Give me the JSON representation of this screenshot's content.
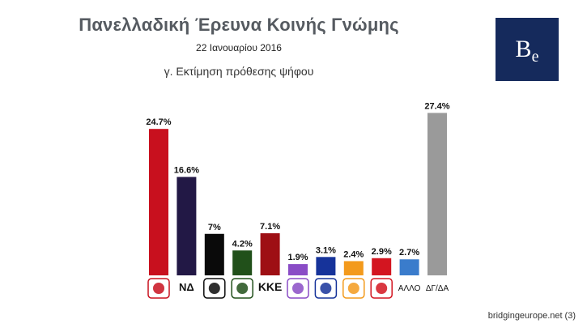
{
  "title": "Πανελλαδική Έρευνα Κοινής Γνώμης",
  "date": "22 Ιανουαρίου 2016",
  "subtitle": "γ. Εκτίμηση πρόθεσης ψήφου",
  "logo_text": "Be",
  "source": "bridgingeurope.net",
  "page_number": "(3)",
  "colors": {
    "logo_bg": "#152a5c"
  },
  "chart_data": {
    "type": "bar",
    "categories": [
      "ΣΥΡΙΖΑ",
      "ΝΔ",
      "Χρυσή Αυγή",
      "ΠΑΣΟΚ",
      "ΚΚΕ",
      "Ποτάμι",
      "Ένωση Κεντρώων",
      "Ανεξάρτητοι Έλληνες",
      "Λαϊκή Ενότητα",
      "ΑΛΛΟ",
      "ΔΓ/ΔΑ"
    ],
    "values": [
      24.7,
      16.6,
      7,
      4.2,
      7.1,
      1.9,
      3.1,
      2.4,
      2.9,
      2.7,
      27.4
    ],
    "value_labels": [
      "24.7%",
      "16.6%",
      "7%",
      "4.2%",
      "7.1%",
      "1.9%",
      "3.1%",
      "2.4%",
      "2.9%",
      "2.7%",
      "27.4%"
    ],
    "colors": [
      "#c8101e",
      "#221845",
      "#0a0a0a",
      "#21501a",
      "#9e0f14",
      "#8a4cc6",
      "#16339a",
      "#f39a1c",
      "#d31520",
      "#3a7ccc",
      "#9a9a9a"
    ],
    "axis_labels": [
      "",
      "ΝΔ",
      "",
      "",
      "ΚΚΕ",
      "",
      "",
      "",
      "",
      "ΑΛΛΟ",
      "ΔΓ/ΔΑ"
    ],
    "ylim": [
      0,
      30
    ],
    "grid": false,
    "legend": "none"
  }
}
